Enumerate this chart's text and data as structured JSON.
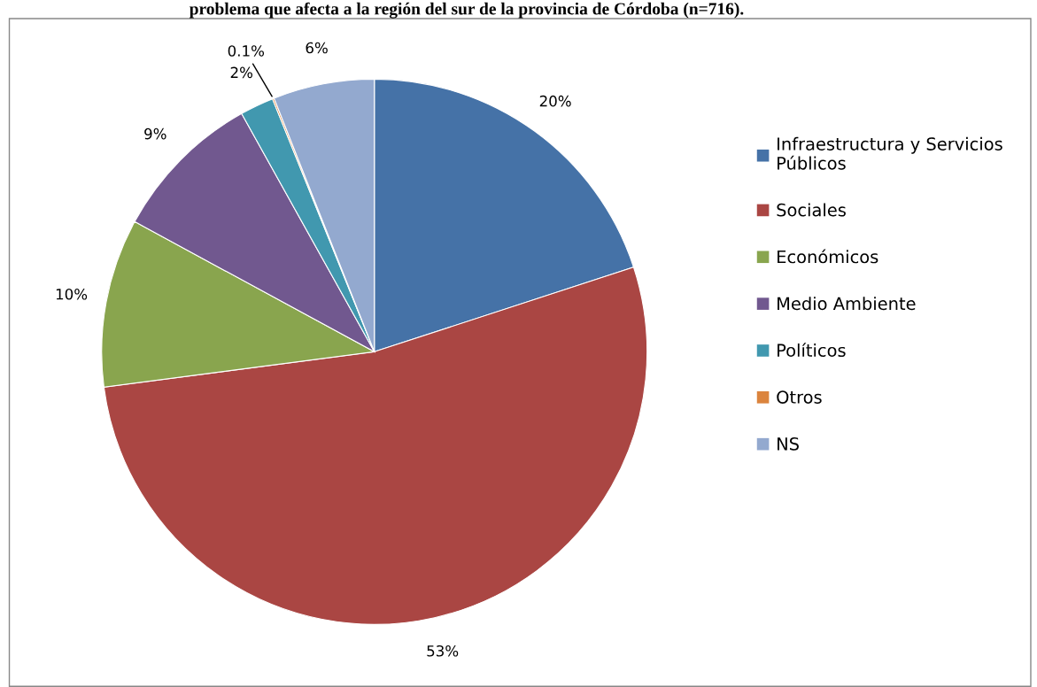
{
  "chart_data": {
    "type": "pie",
    "title": "problema que afecta a la región del sur de la provincia de Córdoba (n=716).",
    "categories": [
      "Infraestructura y Servicios Públicos",
      "Sociales",
      "Económicos",
      "Medio Ambiente",
      "Políticos",
      "Otros",
      "NS"
    ],
    "values": [
      20,
      53,
      10,
      9,
      2,
      0.1,
      6
    ],
    "value_labels": [
      "20%",
      "53%",
      "10%",
      "9%",
      "2%",
      "0.1%",
      "6%"
    ],
    "colors": [
      "#4572a7",
      "#aa4643",
      "#89a54e",
      "#71588f",
      "#4198af",
      "#db843d",
      "#93a9cf"
    ],
    "legend": "right"
  }
}
